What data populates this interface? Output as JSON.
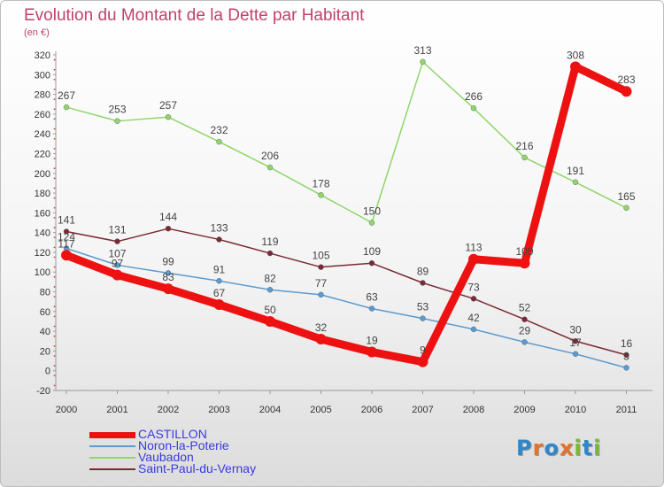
{
  "title": "Evolution du Montant de la Dette par Habitant",
  "subtitle": "(en €)",
  "logo": [
    "P",
    "r",
    "o",
    "x",
    "i",
    "t",
    "i"
  ],
  "logo_colors": [
    "#2f86c9",
    "#e0732d",
    "#2f86c9",
    "#e0732d",
    "#77b930",
    "#2f86c9",
    "#77b930"
  ],
  "chart_data": {
    "type": "line",
    "title": "Evolution du Montant de la Dette par Habitant",
    "subtitle": "(en €)",
    "x": [
      "2000",
      "2001",
      "2002",
      "2003",
      "2004",
      "2005",
      "2006",
      "2007",
      "2008",
      "2009",
      "2010",
      "2011"
    ],
    "ylim": [
      -20,
      320
    ],
    "yticks": [
      -20,
      0,
      20,
      40,
      60,
      80,
      100,
      120,
      140,
      160,
      180,
      200,
      220,
      240,
      260,
      280,
      300,
      320
    ],
    "grid": false,
    "legend_position": "bottom-left",
    "series": [
      {
        "name": "CASTILLON",
        "color": "#ee1111",
        "thick": true,
        "values": [
          117,
          97,
          83,
          67,
          50,
          32,
          19,
          9,
          113,
          109,
          308,
          283
        ],
        "labels": [
          "117",
          "97",
          "83",
          "67",
          "50",
          "32",
          "19",
          "9",
          "113",
          "109",
          "308",
          "283"
        ]
      },
      {
        "name": "Noron-la-Poterie",
        "color": "#5b9bd0",
        "thick": false,
        "values": [
          124,
          107,
          99,
          91,
          82,
          77,
          63,
          53,
          42,
          29,
          17,
          3
        ],
        "labels": [
          "124",
          "107",
          "99",
          "91",
          "82",
          "77",
          "63",
          "53",
          "42",
          "29",
          "17",
          "3"
        ]
      },
      {
        "name": "Vaubadon",
        "color": "#8fd66b",
        "thick": false,
        "values": [
          267,
          253,
          257,
          232,
          206,
          178,
          150,
          313,
          266,
          216,
          191,
          165
        ],
        "labels": [
          "267",
          "253",
          "257",
          "232",
          "206",
          "178",
          "150",
          "313",
          "266",
          "216",
          "191",
          "165"
        ]
      },
      {
        "name": "Saint-Paul-du-Vernay",
        "color": "#7a2a32",
        "thick": false,
        "values": [
          141,
          131,
          144,
          133,
          119,
          105,
          109,
          89,
          73,
          52,
          30,
          16
        ],
        "labels": [
          "141",
          "131",
          "144",
          "133",
          "119",
          "105",
          "109",
          "89",
          "73",
          "52",
          "30",
          "16"
        ]
      }
    ]
  }
}
